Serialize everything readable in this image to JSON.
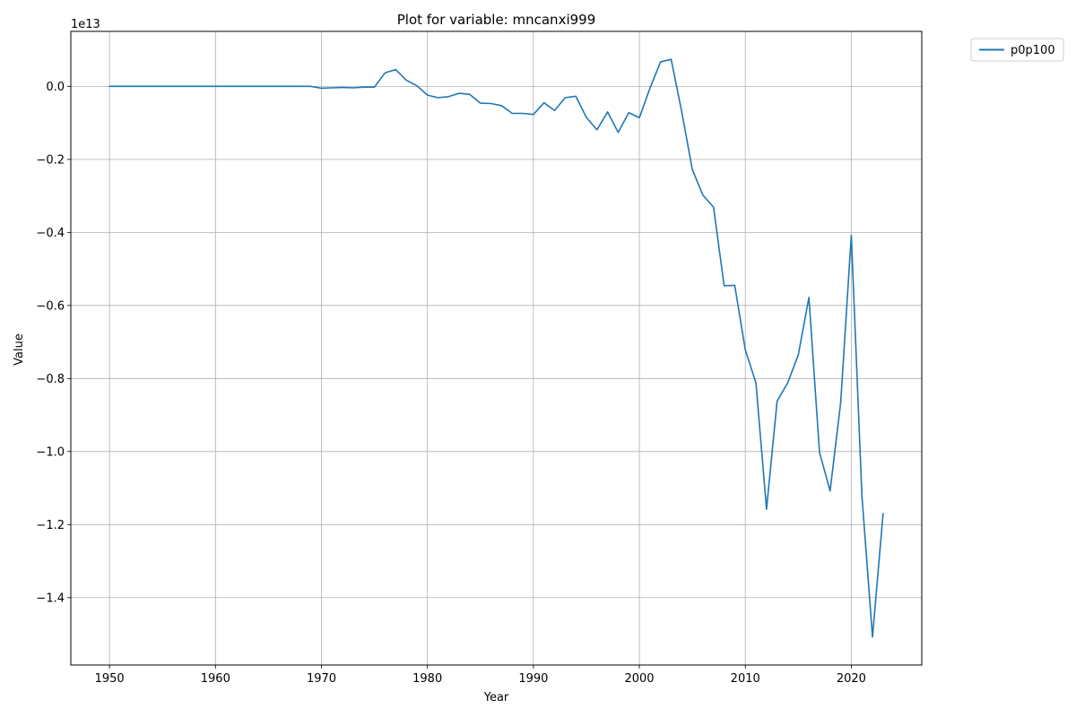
{
  "chart_data": {
    "type": "line",
    "title": "Plot for variable: mncanxi999",
    "xlabel": "Year",
    "ylabel": "Value",
    "y_offset_label": "1e13",
    "xlim": [
      1946.35,
      2026.65
    ],
    "ylim": [
      -1.5846,
      0.1506
    ],
    "x_ticks": [
      1950,
      1960,
      1970,
      1980,
      1990,
      2000,
      2010,
      2020
    ],
    "y_ticks": [
      0.0,
      -0.2,
      -0.4,
      -0.6,
      -0.8,
      -1.0,
      -1.2,
      -1.4
    ],
    "y_tick_labels": [
      "0.0",
      "−0.2",
      "−0.4",
      "−0.6",
      "−0.8",
      "−1.0",
      "−1.2",
      "−1.4"
    ],
    "grid": true,
    "legend_position": "outside-top-right",
    "series": [
      {
        "name": "p0p100",
        "color": "#1f77b4",
        "x": [
          1950,
          1951,
          1952,
          1953,
          1954,
          1955,
          1956,
          1957,
          1958,
          1959,
          1960,
          1961,
          1962,
          1963,
          1964,
          1965,
          1966,
          1967,
          1968,
          1969,
          1970,
          1971,
          1972,
          1973,
          1974,
          1975,
          1976,
          1977,
          1978,
          1979,
          1980,
          1981,
          1982,
          1983,
          1984,
          1985,
          1986,
          1987,
          1988,
          1989,
          1990,
          1991,
          1992,
          1993,
          1994,
          1995,
          1996,
          1997,
          1998,
          1999,
          2000,
          2001,
          2002,
          2003,
          2004,
          2005,
          2006,
          2007,
          2008,
          2009,
          2010,
          2011,
          2012,
          2013,
          2014,
          2015,
          2016,
          2017,
          2018,
          2019,
          2020,
          2021,
          2022,
          2023
        ],
        "values": [
          0,
          0,
          0,
          0,
          0,
          0,
          0,
          0,
          0,
          0,
          0,
          0,
          0,
          0,
          0,
          0,
          0,
          0,
          0,
          0,
          -0.005,
          -0.004,
          -0.003,
          -0.004,
          -0.002,
          -0.002,
          0.037,
          0.046,
          0.017,
          0.002,
          -0.024,
          -0.031,
          -0.028,
          -0.019,
          -0.022,
          -0.046,
          -0.047,
          -0.053,
          -0.074,
          -0.074,
          -0.077,
          -0.045,
          -0.066,
          -0.031,
          -0.027,
          -0.085,
          -0.119,
          -0.07,
          -0.126,
          -0.072,
          -0.086,
          -0.005,
          0.067,
          0.074,
          -0.07,
          -0.228,
          -0.298,
          -0.331,
          -0.546,
          -0.545,
          -0.722,
          -0.812,
          -1.158,
          -0.862,
          -0.812,
          -0.735,
          -0.578,
          -1.002,
          -1.108,
          -0.865,
          -0.408,
          -1.12,
          -1.508,
          -1.17
        ]
      }
    ]
  }
}
